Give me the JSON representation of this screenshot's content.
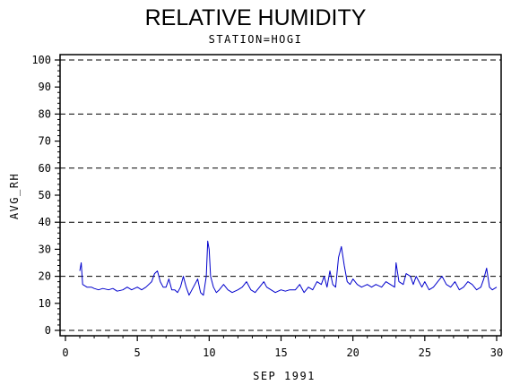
{
  "chart_data": {
    "type": "line",
    "title": "RELATIVE HUMIDITY",
    "subtitle": "STATION=HOGI",
    "xlabel": "SEP  1991",
    "ylabel": "AVG_RH",
    "xlim": [
      0,
      30
    ],
    "ylim": [
      0,
      100
    ],
    "x_ticks": [
      "0",
      "5",
      "10",
      "15",
      "20",
      "25",
      "30"
    ],
    "y_ticks": [
      "0",
      "10",
      "20",
      "30",
      "40",
      "50",
      "60",
      "70",
      "80",
      "90",
      "100"
    ],
    "grid": "dashed horizontal lines at 0, 20, 40, 60, 80, 100",
    "series": [
      {
        "color": "#0000cc",
        "points": [
          [
            1.0,
            22
          ],
          [
            1.1,
            25
          ],
          [
            1.2,
            17
          ],
          [
            1.5,
            16
          ],
          [
            1.8,
            16
          ],
          [
            2.0,
            15.5
          ],
          [
            2.3,
            15
          ],
          [
            2.6,
            15.5
          ],
          [
            3.0,
            15
          ],
          [
            3.3,
            15.5
          ],
          [
            3.6,
            14.5
          ],
          [
            4.0,
            15
          ],
          [
            4.3,
            16
          ],
          [
            4.6,
            15
          ],
          [
            5.0,
            16
          ],
          [
            5.3,
            15
          ],
          [
            5.6,
            16
          ],
          [
            6.0,
            18
          ],
          [
            6.2,
            21
          ],
          [
            6.4,
            22
          ],
          [
            6.6,
            18
          ],
          [
            6.8,
            16
          ],
          [
            7.0,
            16
          ],
          [
            7.2,
            19
          ],
          [
            7.4,
            15
          ],
          [
            7.6,
            15
          ],
          [
            7.8,
            14
          ],
          [
            8.0,
            16
          ],
          [
            8.2,
            20
          ],
          [
            8.4,
            16
          ],
          [
            8.6,
            13
          ],
          [
            8.8,
            15
          ],
          [
            9.0,
            17
          ],
          [
            9.2,
            19
          ],
          [
            9.4,
            14
          ],
          [
            9.6,
            13
          ],
          [
            9.8,
            20
          ],
          [
            9.9,
            33
          ],
          [
            10.0,
            30
          ],
          [
            10.1,
            20
          ],
          [
            10.3,
            16
          ],
          [
            10.5,
            14
          ],
          [
            10.7,
            15
          ],
          [
            11.0,
            17
          ],
          [
            11.3,
            15
          ],
          [
            11.6,
            14
          ],
          [
            12.0,
            15
          ],
          [
            12.3,
            16
          ],
          [
            12.6,
            18
          ],
          [
            12.9,
            15
          ],
          [
            13.2,
            14
          ],
          [
            13.5,
            16
          ],
          [
            13.8,
            18
          ],
          [
            14.0,
            16
          ],
          [
            14.3,
            15
          ],
          [
            14.6,
            14
          ],
          [
            15.0,
            15
          ],
          [
            15.3,
            14.5
          ],
          [
            15.6,
            15
          ],
          [
            16.0,
            15
          ],
          [
            16.3,
            17
          ],
          [
            16.6,
            14
          ],
          [
            16.9,
            16
          ],
          [
            17.2,
            15
          ],
          [
            17.5,
            18
          ],
          [
            17.8,
            17
          ],
          [
            18.0,
            20
          ],
          [
            18.2,
            16
          ],
          [
            18.4,
            22
          ],
          [
            18.6,
            17
          ],
          [
            18.8,
            16
          ],
          [
            19.0,
            27
          ],
          [
            19.2,
            31
          ],
          [
            19.4,
            24
          ],
          [
            19.6,
            18
          ],
          [
            19.8,
            17
          ],
          [
            20.0,
            19
          ],
          [
            20.3,
            17
          ],
          [
            20.6,
            16
          ],
          [
            21.0,
            17
          ],
          [
            21.3,
            16
          ],
          [
            21.6,
            17
          ],
          [
            22.0,
            16
          ],
          [
            22.3,
            18
          ],
          [
            22.6,
            17
          ],
          [
            22.9,
            16
          ],
          [
            23.0,
            25
          ],
          [
            23.2,
            18
          ],
          [
            23.5,
            17
          ],
          [
            23.7,
            21
          ],
          [
            24.0,
            20
          ],
          [
            24.2,
            17
          ],
          [
            24.4,
            20
          ],
          [
            24.6,
            18
          ],
          [
            24.8,
            16
          ],
          [
            25.0,
            18
          ],
          [
            25.3,
            15
          ],
          [
            25.6,
            16
          ],
          [
            25.9,
            18
          ],
          [
            26.2,
            20
          ],
          [
            26.5,
            17
          ],
          [
            26.8,
            16
          ],
          [
            27.1,
            18
          ],
          [
            27.4,
            15
          ],
          [
            27.7,
            16
          ],
          [
            28.0,
            18
          ],
          [
            28.3,
            17
          ],
          [
            28.6,
            15
          ],
          [
            28.9,
            16
          ],
          [
            29.1,
            19
          ],
          [
            29.3,
            23
          ],
          [
            29.5,
            16
          ],
          [
            29.7,
            15
          ],
          [
            30.0,
            16
          ]
        ]
      }
    ]
  },
  "colors": {
    "series_line": "#0000cc",
    "axis": "#000000",
    "grid": "#000000"
  }
}
